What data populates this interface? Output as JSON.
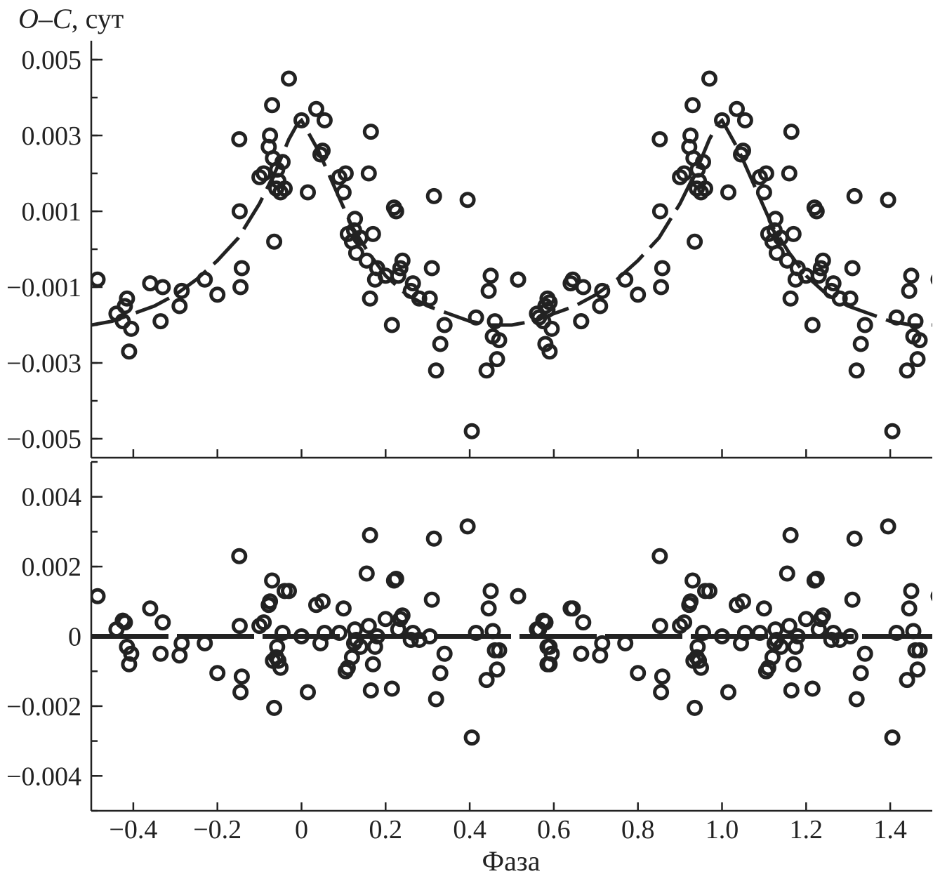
{
  "chart_data": {
    "type": "scatter",
    "shared_x": {
      "label": "Фаза",
      "range": [
        -0.5,
        1.5
      ],
      "ticks": [
        -0.4,
        -0.2,
        0,
        0.2,
        0.4,
        0.6,
        0.8,
        1.0,
        1.2,
        1.4
      ],
      "tick_labels": [
        "−0.4",
        "−0.2",
        "0",
        "0.2",
        "0.4",
        "0.6",
        "0.8",
        "1.0",
        "1.2",
        "1.4"
      ]
    },
    "panels": [
      {
        "id": "top",
        "ylabel_italic": "O–C",
        "ylabel_rest": ", сут",
        "ylim": [
          -0.0055,
          0.0055
        ],
        "y_ticks": [
          0.005,
          0.003,
          0.001,
          -0.001,
          -0.003,
          -0.005
        ],
        "y_tick_labels": [
          "0.005",
          "0.003",
          "0.001",
          "−0.001",
          "−0.003",
          "−0.005"
        ],
        "y_minor_step": 0.001,
        "fit_curve": {
          "style": "dashed",
          "x": [
            -0.5,
            -0.45,
            -0.4,
            -0.35,
            -0.3,
            -0.25,
            -0.2,
            -0.15,
            -0.1,
            -0.06,
            -0.03,
            -0.01,
            0.0,
            0.01,
            0.04,
            0.08,
            0.12,
            0.16,
            0.2,
            0.25,
            0.3,
            0.35,
            0.4,
            0.45,
            0.5,
            0.55,
            0.6,
            0.65,
            0.7,
            0.75,
            0.8,
            0.85,
            0.9,
            0.94,
            0.97,
            0.99,
            1.0,
            1.01,
            1.04,
            1.08,
            1.12,
            1.16,
            1.2,
            1.25,
            1.3,
            1.35,
            1.4,
            1.45,
            1.5
          ],
          "y": [
            -0.002,
            -0.0019,
            -0.0017,
            -0.0015,
            -0.0012,
            -0.0008,
            -0.0003,
            0.0003,
            0.0012,
            0.0021,
            0.0029,
            0.0033,
            0.0034,
            0.0032,
            0.0026,
            0.0016,
            0.0006,
            -0.0001,
            -0.0007,
            -0.0012,
            -0.0015,
            -0.0017,
            -0.0019,
            -0.002,
            -0.002,
            -0.0019,
            -0.0017,
            -0.0015,
            -0.0012,
            -0.0008,
            -0.0003,
            0.0003,
            0.0012,
            0.0021,
            0.0029,
            0.0033,
            0.0034,
            0.0032,
            0.0026,
            0.0016,
            0.0006,
            -0.0001,
            -0.0007,
            -0.0012,
            -0.0015,
            -0.0017,
            -0.0019,
            -0.002,
            -0.002
          ]
        },
        "points": {
          "x": [
            -0.485,
            -0.44,
            -0.425,
            -0.42,
            -0.415,
            -0.41,
            -0.405,
            -0.36,
            -0.335,
            -0.33,
            -0.29,
            -0.285,
            -0.23,
            -0.2,
            -0.148,
            -0.147,
            -0.145,
            -0.142,
            -0.1,
            -0.09,
            -0.078,
            -0.075,
            -0.07,
            -0.068,
            -0.065,
            -0.06,
            -0.058,
            -0.055,
            -0.05,
            -0.045,
            -0.04,
            -0.03,
            0.0,
            0.015,
            0.035,
            0.045,
            0.05,
            0.055,
            0.09,
            0.1,
            0.105,
            0.11,
            0.12,
            0.125,
            0.127,
            0.13,
            0.14,
            0.155,
            0.16,
            0.163,
            0.165,
            0.17,
            0.175,
            0.18,
            0.2,
            0.215,
            0.22,
            0.225,
            0.23,
            0.235,
            0.24,
            0.26,
            0.265,
            0.28,
            0.305,
            0.31,
            0.315,
            0.32,
            0.33,
            0.34,
            0.395,
            0.405,
            0.415,
            0.44,
            0.445,
            0.45,
            0.455,
            0.46,
            0.465,
            0.47,
            0.515,
            0.565,
            0.58,
            0.585,
            0.59,
            0.645,
            0.665
          ],
          "y": [
            -0.0008,
            -0.0017,
            -0.0019,
            -0.0015,
            -0.0013,
            -0.0027,
            -0.0021,
            -0.0009,
            -0.0019,
            -0.001,
            -0.0015,
            -0.0011,
            -0.0008,
            -0.0012,
            0.0029,
            0.001,
            -0.001,
            -0.0005,
            0.0019,
            0.002,
            0.0027,
            0.003,
            0.0038,
            0.0024,
            0.0002,
            0.0016,
            0.0021,
            0.0018,
            0.0015,
            0.0023,
            0.0016,
            0.0045,
            0.0034,
            0.0015,
            0.0037,
            0.0025,
            0.0026,
            0.0034,
            0.0019,
            0.0015,
            0.002,
            0.0004,
            0.0002,
            0.0005,
            0.0008,
            -0.0001,
            0.0003,
            -0.0003,
            0.002,
            -0.0013,
            0.0031,
            0.0004,
            -0.0008,
            -0.0005,
            -0.0007,
            -0.002,
            0.0011,
            0.001,
            -0.0007,
            -0.0005,
            -0.0003,
            -0.0011,
            -0.0009,
            -0.0013,
            -0.0013,
            -0.0005,
            0.0014,
            -0.0032,
            -0.0025,
            -0.002,
            0.0013,
            -0.0048,
            -0.0018,
            -0.0032,
            -0.0011,
            -0.0007,
            -0.0023,
            -0.0019,
            -0.0029,
            -0.0024,
            -0.0008,
            -0.0018,
            -0.0025,
            -0.0016,
            -0.0014,
            -0.0008,
            -0.0019
          ]
        }
      },
      {
        "id": "bottom",
        "ylim": [
          -0.005,
          0.005
        ],
        "y_ticks": [
          0.004,
          0.002,
          0,
          -0.002,
          -0.004
        ],
        "y_tick_labels": [
          "0.004",
          "0.002",
          "0",
          "−0.002",
          "−0.004"
        ],
        "y_minor_step": 0.001,
        "zero_line": {
          "style": "dashed",
          "y": 0
        },
        "points": {
          "x": [
            -0.485,
            -0.44,
            -0.425,
            -0.42,
            -0.415,
            -0.41,
            -0.405,
            -0.36,
            -0.335,
            -0.33,
            -0.29,
            -0.285,
            -0.23,
            -0.2,
            -0.148,
            -0.147,
            -0.145,
            -0.142,
            -0.1,
            -0.09,
            -0.078,
            -0.075,
            -0.07,
            -0.068,
            -0.065,
            -0.06,
            -0.058,
            -0.055,
            -0.05,
            -0.045,
            -0.04,
            -0.03,
            0.0,
            0.015,
            0.035,
            0.045,
            0.05,
            0.055,
            0.09,
            0.1,
            0.105,
            0.11,
            0.12,
            0.125,
            0.127,
            0.13,
            0.14,
            0.155,
            0.16,
            0.163,
            0.165,
            0.17,
            0.175,
            0.18,
            0.2,
            0.215,
            0.22,
            0.225,
            0.23,
            0.235,
            0.24,
            0.26,
            0.265,
            0.28,
            0.305,
            0.31,
            0.315,
            0.32,
            0.33,
            0.34,
            0.395,
            0.405,
            0.415,
            0.44,
            0.445,
            0.45,
            0.455,
            0.46,
            0.465,
            0.47,
            0.515,
            0.565,
            0.58,
            0.585,
            0.59,
            0.645,
            0.665
          ],
          "y": [
            0.00115,
            0.0002,
            0.00045,
            0.0004,
            -0.0003,
            -0.0008,
            -0.0005,
            0.0008,
            -0.0005,
            0.0004,
            -0.00055,
            -0.0002,
            -0.0002,
            -0.00105,
            0.0023,
            0.0003,
            -0.0016,
            -0.00115,
            0.0003,
            0.0004,
            0.0009,
            0.001,
            0.0016,
            -0.0007,
            -0.00205,
            -0.0006,
            -0.0003,
            -0.0007,
            -0.0009,
            0.0001,
            0.0013,
            0.0013,
            0.0,
            -0.0016,
            0.0009,
            -0.0002,
            0.001,
            0.0001,
            0.0001,
            0.0008,
            -0.001,
            -0.0009,
            -0.0006,
            -0.0002,
            0.0002,
            -0.0001,
            -0.0003,
            0.0018,
            0.0003,
            0.0029,
            -0.00155,
            -0.0008,
            -0.0003,
            0.0,
            0.0005,
            -0.0015,
            0.0016,
            0.00165,
            0.0002,
            0.0005,
            0.0006,
            -0.0001,
            0.0001,
            -0.0001,
            0.0,
            0.00105,
            0.0028,
            -0.0018,
            -0.00105,
            -0.0005,
            0.00315,
            -0.0029,
            0.0001,
            -0.00125,
            0.0008,
            0.0013,
            0.00015,
            -0.0004,
            -0.00095,
            -0.0004,
            0.00115,
            0.0002,
            0.0004,
            -0.0008,
            -0.0003,
            0.0008,
            -0.0005
          ]
        }
      }
    ]
  }
}
